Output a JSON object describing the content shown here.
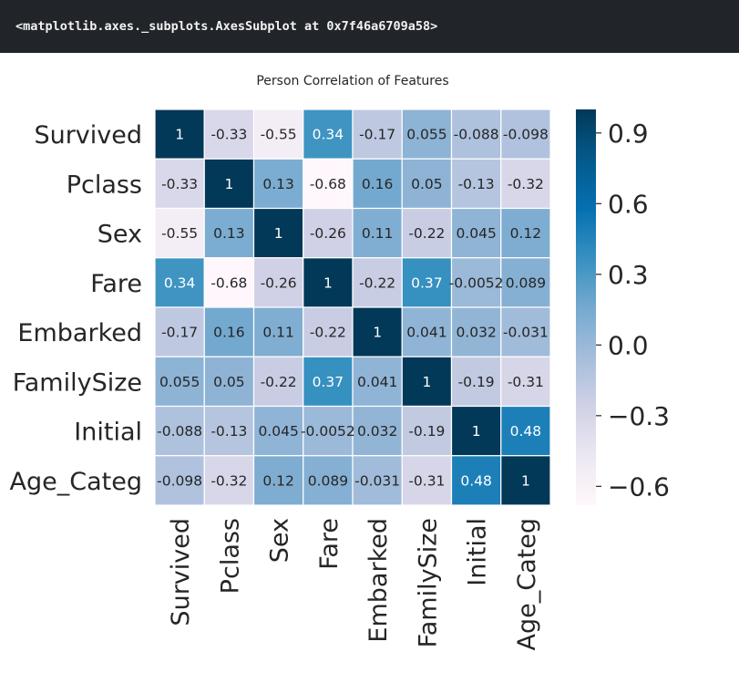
{
  "output": {
    "repr_text": "<matplotlib.axes._subplots.AxesSubplot at 0x7f46a6709a58>"
  },
  "chart_data": {
    "type": "heatmap",
    "title": "Person Correlation of Features",
    "features": [
      "Survived",
      "Pclass",
      "Sex",
      "Fare",
      "Embarked",
      "FamilySize",
      "Initial",
      "Age_Categ"
    ],
    "labels": [
      [
        "1",
        "-0.33",
        "-0.55",
        "0.34",
        "-0.17",
        "0.055",
        "-0.088",
        "-0.098"
      ],
      [
        "-0.33",
        "1",
        "0.13",
        "-0.68",
        "0.16",
        "0.05",
        "-0.13",
        "-0.32"
      ],
      [
        "-0.55",
        "0.13",
        "1",
        "-0.26",
        "0.11",
        "-0.22",
        "0.045",
        "0.12"
      ],
      [
        "0.34",
        "-0.68",
        "-0.26",
        "1",
        "-0.22",
        "0.37",
        "-0.0052",
        "0.089"
      ],
      [
        "-0.17",
        "0.16",
        "0.11",
        "-0.22",
        "1",
        "0.041",
        "0.032",
        "-0.031"
      ],
      [
        "0.055",
        "0.05",
        "-0.22",
        "0.37",
        "0.041",
        "1",
        "-0.19",
        "-0.31"
      ],
      [
        "-0.088",
        "-0.13",
        "0.045",
        "-0.0052",
        "0.032",
        "-0.19",
        "1",
        "0.48"
      ],
      [
        "-0.098",
        "-0.32",
        "0.12",
        "0.089",
        "-0.031",
        "-0.31",
        "0.48",
        "1"
      ]
    ],
    "vmin": -0.68,
    "vmax": 1.0,
    "colormap": "PuBu",
    "colorbar_ticks": [
      "0.9",
      "0.6",
      "0.3",
      "0.0",
      "−0.3",
      "−0.6"
    ],
    "colorbar_tick_values": [
      0.9,
      0.6,
      0.3,
      0.0,
      -0.3,
      -0.6
    ],
    "linecolor": "#ffffff",
    "annotated": true
  }
}
